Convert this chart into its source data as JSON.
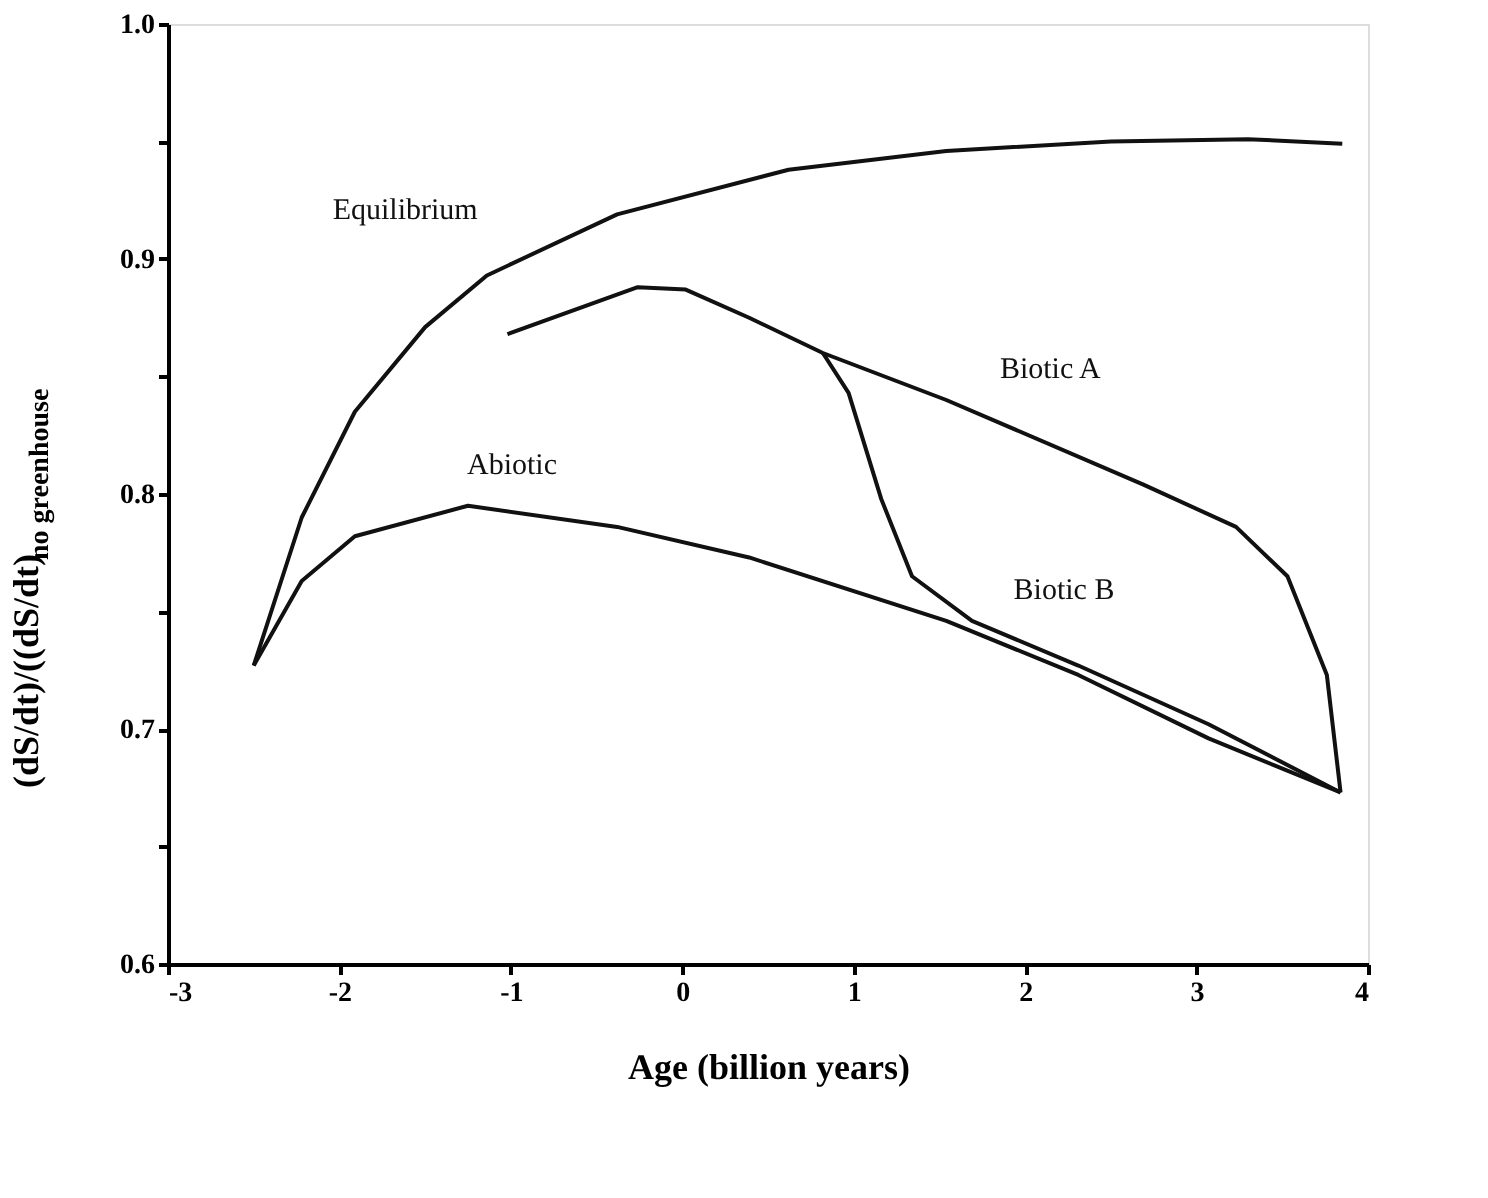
{
  "chart_data": {
    "type": "line",
    "xlabel": "Age (billion years)",
    "ylabel": "(dS/dt)/((dS/dt)$_{no  greenhouse}$",
    "xlim": [
      -3,
      4
    ],
    "xticks": [
      -3,
      -2,
      -1,
      0,
      1,
      2,
      3,
      4
    ],
    "ylim": [
      0.6,
      1.0
    ],
    "yticks": [
      0.6,
      {
        "value": 0.65,
        "label": null
      },
      0.7,
      {
        "value": 0.75,
        "label": null
      },
      0.8,
      {
        "value": 0.85,
        "label": null
      },
      0.9,
      {
        "value": 0.95,
        "label": null
      },
      {
        "value": 1.0,
        "label": "1.0"
      }
    ],
    "grid": false,
    "legend": false,
    "marker": "none",
    "line_style": "solid",
    "series": [
      {
        "name": "Equilibrium",
        "color": "#111111",
        "x": [
          -2.5,
          -2.22,
          -1.91,
          -1.5,
          -1.14,
          -0.38,
          0.62,
          1.54,
          2.5,
          3.3,
          3.85
        ],
        "values": [
          0.727,
          0.79,
          0.835,
          0.871,
          0.893,
          0.919,
          0.938,
          0.946,
          0.95,
          0.951,
          0.949
        ]
      },
      {
        "name": "Abiotic",
        "color": "#111111",
        "x": [
          -2.5,
          -2.22,
          -1.91,
          -1.25,
          -0.38,
          0.39,
          1.54,
          2.31,
          3.07,
          3.84
        ],
        "values": [
          0.727,
          0.763,
          0.782,
          0.795,
          0.786,
          0.773,
          0.746,
          0.723,
          0.696,
          0.673
        ]
      },
      {
        "name": "Biotic A",
        "color": "#111111",
        "x": [
          -1.02,
          -0.26,
          0.02,
          0.39,
          0.82,
          1.54,
          2.69,
          3.23,
          3.53,
          3.76,
          3.84
        ],
        "values": [
          0.868,
          0.888,
          0.887,
          0.875,
          0.86,
          0.84,
          0.804,
          0.786,
          0.765,
          0.723,
          0.673
        ]
      },
      {
        "name": "Biotic B",
        "color": "#111111",
        "x": [
          0.82,
          0.97,
          1.16,
          1.34,
          1.69,
          2.31,
          3.07,
          3.84
        ],
        "values": [
          0.86,
          0.843,
          0.798,
          0.765,
          0.746,
          0.727,
          0.702,
          0.673
        ]
      }
    ]
  }
}
